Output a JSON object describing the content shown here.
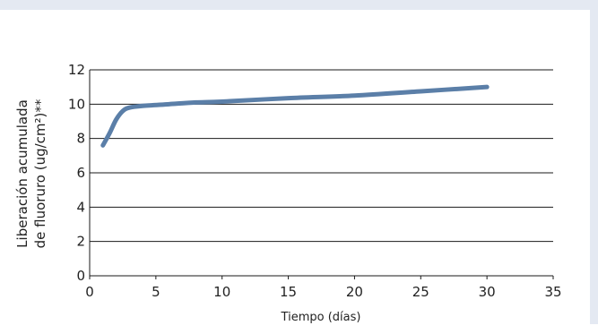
{
  "chart_data": {
    "type": "line",
    "title": "",
    "xlabel": "Tiempo (días)",
    "ylabel_lines": [
      "Liberación acumulada",
      "de fluoruro (ug/cm²)**"
    ],
    "xlim": [
      0,
      35
    ],
    "ylim": [
      0,
      12
    ],
    "x_ticks": [
      0,
      5,
      10,
      15,
      20,
      25,
      30,
      35
    ],
    "y_ticks": [
      0,
      2,
      4,
      6,
      8,
      10,
      12
    ],
    "grid": "horizontal",
    "series": [
      {
        "color": "#5b7fa8",
        "x": [
          1,
          1.5,
          2,
          2.5,
          3,
          4,
          6,
          8,
          10,
          15,
          20,
          25,
          30
        ],
        "y": [
          7.6,
          8.3,
          9.1,
          9.6,
          9.8,
          9.9,
          10.0,
          10.1,
          10.15,
          10.35,
          10.5,
          10.75,
          11.0
        ]
      }
    ]
  }
}
